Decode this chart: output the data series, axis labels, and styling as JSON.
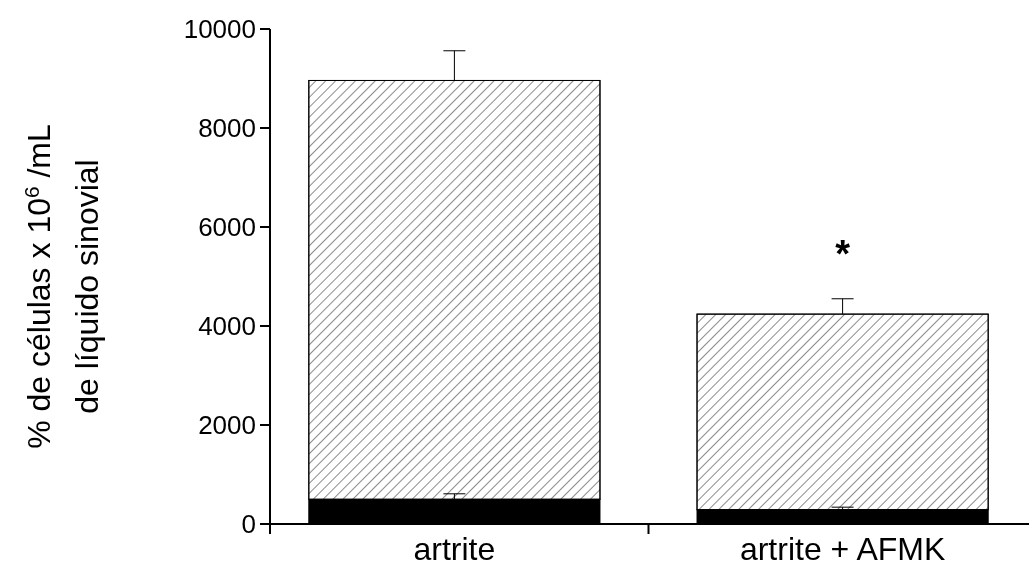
{
  "chart_data": {
    "type": "bar",
    "stacked": true,
    "ylabel": "% de células x 10$^{6}$ /mL\nde líquido sinovial",
    "categories": [
      "artrite",
      "artrite + AFMK"
    ],
    "series": [
      {
        "color": "#000000",
        "values": [
          500,
          290
        ],
        "errors": [
          [
            500,
            610
          ],
          [
            290,
            340
          ]
        ]
      },
      {
        "color": "#ffffff",
        "values": [
          8460,
          3950
        ],
        "errors": [
          [
            8960,
            9560
          ],
          [
            4240,
            4550
          ]
        ]
      }
    ],
    "ylim": [
      0,
      10000
    ],
    "yticks": [
      0,
      2000,
      4000,
      6000,
      8000,
      10000
    ],
    "annotations": [
      "*"
    ]
  }
}
